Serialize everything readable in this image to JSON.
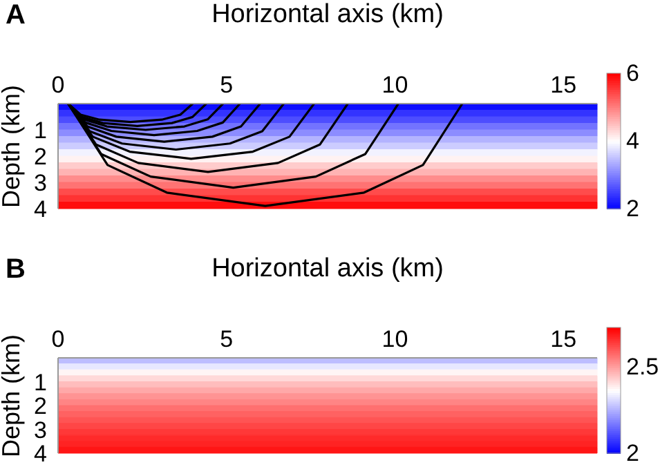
{
  "chart_data": [
    {
      "type": "heatmap",
      "title": "A",
      "xlabel": "Horizontal axis (km)",
      "ylabel": "Depth (km)",
      "xlim": [
        0,
        16
      ],
      "xticks": [
        0,
        5,
        10,
        15
      ],
      "ylim": [
        4,
        0
      ],
      "yticks": [
        1,
        2,
        3,
        4
      ],
      "clim": [
        2,
        6
      ],
      "cticks": [
        2,
        4,
        6
      ],
      "cells": [
        [
          2.1
        ],
        [
          2.4
        ],
        [
          2.6
        ],
        [
          2.9
        ],
        [
          3.1
        ],
        [
          3.4
        ],
        [
          3.6
        ],
        [
          3.9
        ],
        [
          4.1
        ],
        [
          4.4
        ],
        [
          4.6
        ],
        [
          4.9
        ],
        [
          5.1
        ],
        [
          5.4
        ],
        [
          5.6
        ],
        [
          5.9
        ]
      ],
      "series": [
        {
          "type": "line",
          "color": "#000000",
          "x": [
            0.3,
            1.47,
            3.23,
            6.15,
            9.08,
            10.83,
            12
          ],
          "values": [
            0,
            2.34,
            3.39,
            3.9,
            3.39,
            2.34,
            0
          ]
        },
        {
          "type": "line",
          "color": "#000000",
          "x": [
            0.3,
            1.28,
            2.75,
            5.2,
            7.65,
            9.12,
            10.1
          ],
          "values": [
            0,
            1.92,
            2.78,
            3.2,
            2.78,
            1.92,
            0
          ]
        },
        {
          "type": "line",
          "color": "#000000",
          "x": [
            0.3,
            1.13,
            2.38,
            4.45,
            6.53,
            7.77,
            8.6
          ],
          "values": [
            0,
            1.56,
            2.26,
            2.6,
            2.26,
            1.56,
            0
          ]
        },
        {
          "type": "line",
          "color": "#000000",
          "x": [
            0.3,
            1.03,
            2.13,
            3.95,
            5.78,
            6.87,
            7.6
          ],
          "values": [
            0,
            1.26,
            1.83,
            2.1,
            1.83,
            1.26,
            0
          ]
        },
        {
          "type": "line",
          "color": "#000000",
          "x": [
            0.3,
            0.94,
            1.9,
            3.5,
            5.1,
            6.06,
            6.7
          ],
          "values": [
            0,
            1.05,
            1.52,
            1.75,
            1.52,
            1.05,
            0
          ]
        },
        {
          "type": "line",
          "color": "#000000",
          "x": [
            0.3,
            0.87,
            1.73,
            3.15,
            4.58,
            5.43,
            6
          ],
          "values": [
            0,
            0.87,
            1.26,
            1.45,
            1.26,
            0.87,
            0
          ]
        },
        {
          "type": "line",
          "color": "#000000",
          "x": [
            0.3,
            0.81,
            1.58,
            2.85,
            4.13,
            4.89,
            5.4
          ],
          "values": [
            0,
            0.72,
            1.04,
            1.2,
            1.04,
            0.72,
            0
          ]
        },
        {
          "type": "line",
          "color": "#000000",
          "x": [
            0.3,
            0.76,
            1.45,
            2.6,
            3.75,
            4.44,
            4.9
          ],
          "values": [
            0,
            0.6,
            0.87,
            1,
            0.87,
            0.6,
            0
          ]
        },
        {
          "type": "line",
          "color": "#000000",
          "x": [
            0.3,
            0.71,
            1.33,
            2.35,
            3.38,
            3.99,
            4.4
          ],
          "values": [
            0,
            0.51,
            0.74,
            0.85,
            0.74,
            0.51,
            0
          ]
        },
        {
          "type": "line",
          "color": "#000000",
          "x": [
            0.3,
            0.67,
            1.23,
            2.15,
            3.08,
            3.63,
            4
          ],
          "values": [
            0,
            0.42,
            0.61,
            0.7,
            0.61,
            0.42,
            0
          ]
        }
      ]
    },
    {
      "type": "heatmap",
      "title": "B",
      "xlabel": "Horizontal axis (km)",
      "ylabel": "Depth (km)",
      "xlim": [
        0,
        16
      ],
      "xticks": [
        0,
        5,
        10,
        15
      ],
      "ylim": [
        4,
        0
      ],
      "yticks": [
        1,
        2,
        3,
        4
      ],
      "clim": [
        2,
        2.73
      ],
      "cticks": [
        2,
        2.5
      ],
      "cells": [
        [
          2.27
        ],
        [
          2.33
        ],
        [
          2.38
        ],
        [
          2.42
        ],
        [
          2.46
        ],
        [
          2.49
        ],
        [
          2.52
        ],
        [
          2.54
        ],
        [
          2.57
        ],
        [
          2.59
        ],
        [
          2.61
        ],
        [
          2.63
        ],
        [
          2.65
        ],
        [
          2.67
        ],
        [
          2.68
        ],
        [
          2.7
        ]
      ]
    }
  ]
}
